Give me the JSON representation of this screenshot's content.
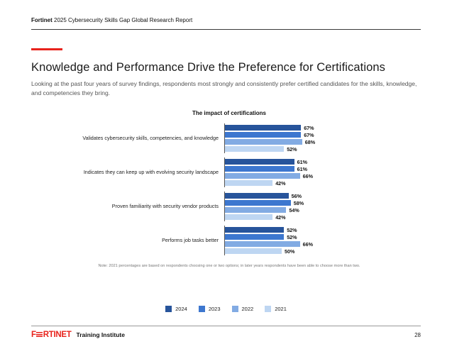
{
  "header": {
    "brand": "Fortinet",
    "report_title": " 2025 Cybersecurity Skills Gap Global Research Report"
  },
  "main": {
    "title": "Knowledge and Performance Drive the Preference for Certifications",
    "subtitle": "Looking at the past four years of survey findings, respondents most strongly and consistently prefer certified candidates for the skills, knowledge, and competencies they bring."
  },
  "colors": {
    "accent_red": "#e8231c",
    "bar_2024": "#27549b",
    "bar_2023": "#3d77cf",
    "bar_2022": "#82abe3",
    "bar_2021": "#bed6f2"
  },
  "chart_data": {
    "type": "bar",
    "orientation": "horizontal",
    "title": "The impact of certifications",
    "categories": [
      "Validates cybersecurity skills, competencies, and knowledge",
      "Indicates they can keep up with evolving security landscape",
      "Proven familiarity with security vendor products",
      "Performs job tasks better"
    ],
    "series": [
      {
        "name": "2024",
        "color": "#27549b",
        "values": [
          67,
          61,
          56,
          52
        ]
      },
      {
        "name": "2023",
        "color": "#3d77cf",
        "values": [
          67,
          61,
          58,
          52
        ]
      },
      {
        "name": "2022",
        "color": "#82abe3",
        "values": [
          68,
          66,
          54,
          66
        ]
      },
      {
        "name": "2021",
        "color": "#bed6f2",
        "values": [
          52,
          42,
          42,
          50
        ]
      }
    ],
    "value_suffix": "%",
    "xlim": [
      0,
      75
    ],
    "grid": false,
    "legend_position": "bottom",
    "note": "Note: 2021 percentages are based on respondents choosing one or two options; in later years respondents have been able to choose more than two."
  },
  "footer": {
    "logo_prefix": "F",
    "logo_suffix": "RTINET",
    "division": "Training Institute",
    "page_number": "28"
  }
}
